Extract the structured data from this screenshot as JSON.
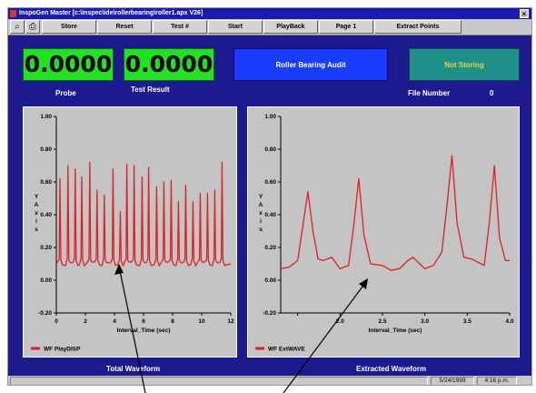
{
  "window": {
    "title": "InspoGen Master [c:\\inspec\\ide\\rollerbearing\\roller1.apx V26]",
    "close_glyph": "×",
    "app_icon": "app-icon"
  },
  "toolbar": {
    "icons": [
      "search-icon",
      "printer-icon"
    ],
    "icon_glyphs": [
      "⌕",
      "⎙"
    ],
    "buttons": [
      "Store",
      "Reset",
      "Test #",
      "Start",
      "PlayBack",
      "Page 1",
      "Extract Points"
    ]
  },
  "displays": {
    "probe_value": "0.0000",
    "probe_label": "Probe",
    "test_value": "0.0000",
    "test_label": "Test Result",
    "audit_label": "Roller Bearing Audit",
    "status_label": "Not Storing",
    "file_number_label": "File Number",
    "file_number_value": "0"
  },
  "colors": {
    "background": "#1c1a8e",
    "display_green": "#22e022",
    "audit_blue": "#1a3cff",
    "status_teal": "#1f8f8a",
    "status_text": "#e6d640",
    "trace_red": "#e02020",
    "plot_bg": "#c4c4c4"
  },
  "chart_data": [
    {
      "type": "line",
      "title": "Total Waveform",
      "xlabel": "Interval_Time (sec)",
      "ylabel": "Y Axis",
      "xlim": [
        0,
        12
      ],
      "ylim": [
        -0.2,
        1.0
      ],
      "xticks": [
        0,
        2,
        4,
        6,
        8,
        10,
        12
      ],
      "yticks": [
        1.0,
        0.8,
        0.6,
        0.4,
        0.2,
        0.0,
        -0.2
      ],
      "ytick_labels": [
        "1.00",
        "0.80",
        "0.60",
        "0.40",
        "0.20",
        "0.00",
        "-0.20"
      ],
      "legend": "WF PlayDISP",
      "legend_position": "bottom-left",
      "grid": false,
      "series": [
        {
          "baseline": 0.1,
          "peaks_x": [
            0.25,
            0.8,
            1.3,
            1.75,
            2.3,
            2.8,
            3.3,
            3.9,
            4.4,
            4.85,
            5.35,
            5.9,
            6.35,
            6.9,
            7.4,
            7.9,
            8.4,
            8.9,
            9.4,
            9.9,
            10.4,
            10.9,
            11.4
          ],
          "peaks_y": [
            0.62,
            0.7,
            0.68,
            0.63,
            0.72,
            0.55,
            0.52,
            0.68,
            0.42,
            0.71,
            0.7,
            0.63,
            0.69,
            0.57,
            0.6,
            0.61,
            0.48,
            0.58,
            0.48,
            0.53,
            0.53,
            0.55,
            0.72
          ]
        }
      ]
    },
    {
      "type": "line",
      "title": "Extracted Waveform",
      "xlabel": "Interval_Time (sec)",
      "ylabel": "Y Axis",
      "xlim": [
        1.3,
        4.0
      ],
      "ylim": [
        -0.2,
        1.0
      ],
      "xticks": [
        1.5,
        2.0,
        2.5,
        3.0,
        3.5,
        4.0
      ],
      "xtick_labels": [
        "",
        "2.0",
        "2.5",
        "3.0",
        "3.5",
        "4.0"
      ],
      "yticks": [
        1.0,
        0.8,
        0.6,
        0.4,
        0.2,
        0.0,
        -0.2
      ],
      "ytick_labels": [
        "1.00",
        "0.80",
        "0.60",
        "0.40",
        "0.20",
        "0.00",
        "-0.20"
      ],
      "legend": "WF ExtWAVE",
      "legend_position": "bottom-left",
      "grid": false,
      "series": [
        {
          "x": [
            1.3,
            1.4,
            1.5,
            1.56,
            1.62,
            1.68,
            1.74,
            1.8,
            1.9,
            2.0,
            2.1,
            2.16,
            2.22,
            2.28,
            2.36,
            2.5,
            2.6,
            2.7,
            2.8,
            2.86,
            2.94,
            3.0,
            3.1,
            3.2,
            3.26,
            3.32,
            3.38,
            3.46,
            3.55,
            3.7,
            3.76,
            3.82,
            3.88,
            3.95,
            4.0
          ],
          "y": [
            0.07,
            0.08,
            0.12,
            0.33,
            0.54,
            0.3,
            0.13,
            0.12,
            0.14,
            0.07,
            0.09,
            0.33,
            0.62,
            0.28,
            0.1,
            0.09,
            0.06,
            0.07,
            0.12,
            0.14,
            0.1,
            0.07,
            0.09,
            0.17,
            0.45,
            0.76,
            0.35,
            0.14,
            0.13,
            0.09,
            0.35,
            0.7,
            0.26,
            0.12,
            0.12
          ]
        }
      ]
    }
  ],
  "status": {
    "date": "5/24/1999",
    "time": "4:16 p.m."
  }
}
